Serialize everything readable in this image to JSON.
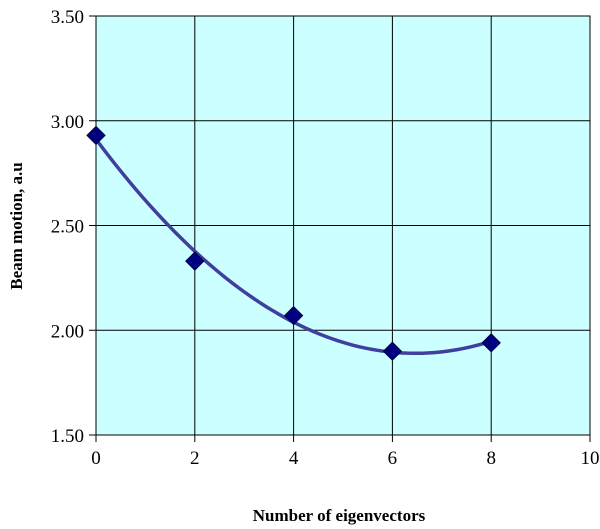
{
  "chart_data": {
    "type": "scatter",
    "title": "",
    "xlabel": "Number of eigenvectors",
    "ylabel": "Beam motion, a.u",
    "xlim": [
      0,
      10
    ],
    "ylim": [
      1.5,
      3.5
    ],
    "x_ticks": [
      "0",
      "2",
      "4",
      "6",
      "8",
      "10"
    ],
    "y_ticks": [
      "1.50",
      "2.00",
      "2.50",
      "3.00",
      "3.50"
    ],
    "grid": true,
    "legend": "none",
    "series": [
      {
        "x": [
          0,
          2,
          4,
          6,
          8
        ],
        "y": [
          2.93,
          2.33,
          2.07,
          1.9,
          1.94
        ],
        "marker": "diamond",
        "color": "#000080",
        "trendline": "polynomial"
      }
    ],
    "colors": {
      "plot_background": "#ccffff",
      "grid": "#000000",
      "curve": "#3f3f9f",
      "marker": "#000080"
    }
  }
}
